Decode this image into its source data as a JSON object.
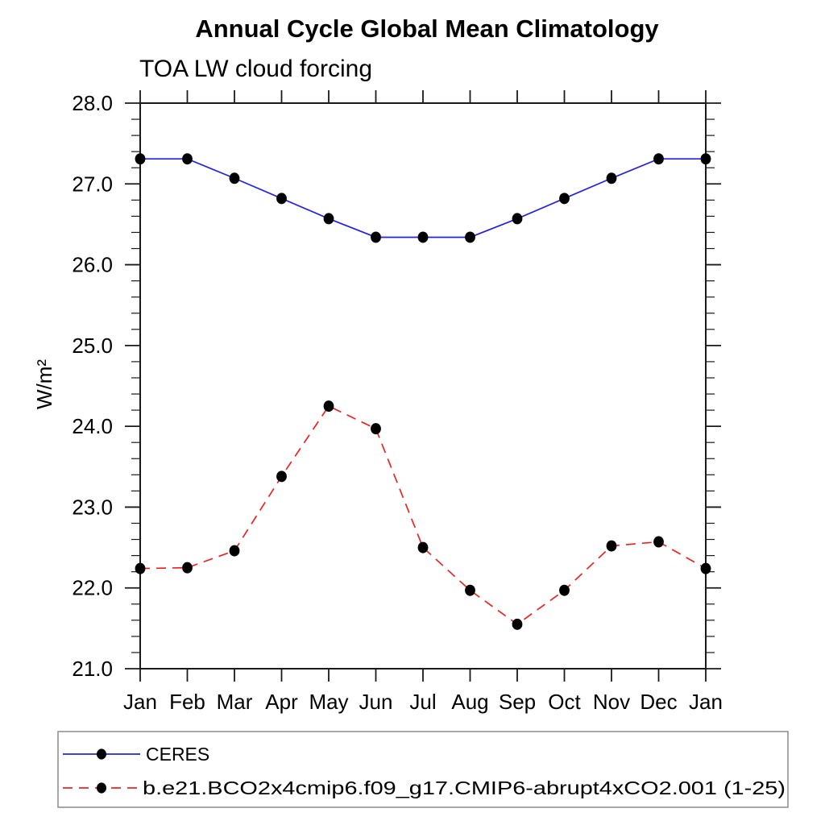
{
  "chart_data": {
    "type": "line",
    "title": "Annual Cycle Global Mean Climatology",
    "subtitle": "TOA LW cloud forcing",
    "ylabel": "W/m²",
    "xlabel": "",
    "categories": [
      "Jan",
      "Feb",
      "Mar",
      "Apr",
      "May",
      "Jun",
      "Jul",
      "Aug",
      "Sep",
      "Oct",
      "Nov",
      "Dec",
      "Jan"
    ],
    "ylim": [
      21.0,
      28.0
    ],
    "ytick_major_interval": 1.0,
    "ytick_minor_interval": 0.2,
    "ytick_label_format": "one-decimal",
    "grid": false,
    "legend_position": "bottom-left-box",
    "frame_color": "#1a1a1a",
    "marker_color": "#000000",
    "series": [
      {
        "name": "CERES",
        "color": "#2323e8",
        "style": "solid",
        "marker": "filled-circle",
        "values": [
          27.31,
          27.31,
          27.07,
          26.82,
          26.57,
          26.34,
          26.34,
          26.34,
          26.57,
          26.82,
          27.07,
          27.31,
          27.31
        ]
      },
      {
        "name": "b.e21.BCO2x4cmip6.f09_g17.CMIP6-abrupt4xCO2.001 (1-25)",
        "color": "#f32222",
        "style": "dashed",
        "marker": "filled-circle",
        "values": [
          22.24,
          22.25,
          22.46,
          23.38,
          24.25,
          23.97,
          22.5,
          21.97,
          21.55,
          21.97,
          22.52,
          22.57,
          22.24
        ]
      }
    ]
  }
}
